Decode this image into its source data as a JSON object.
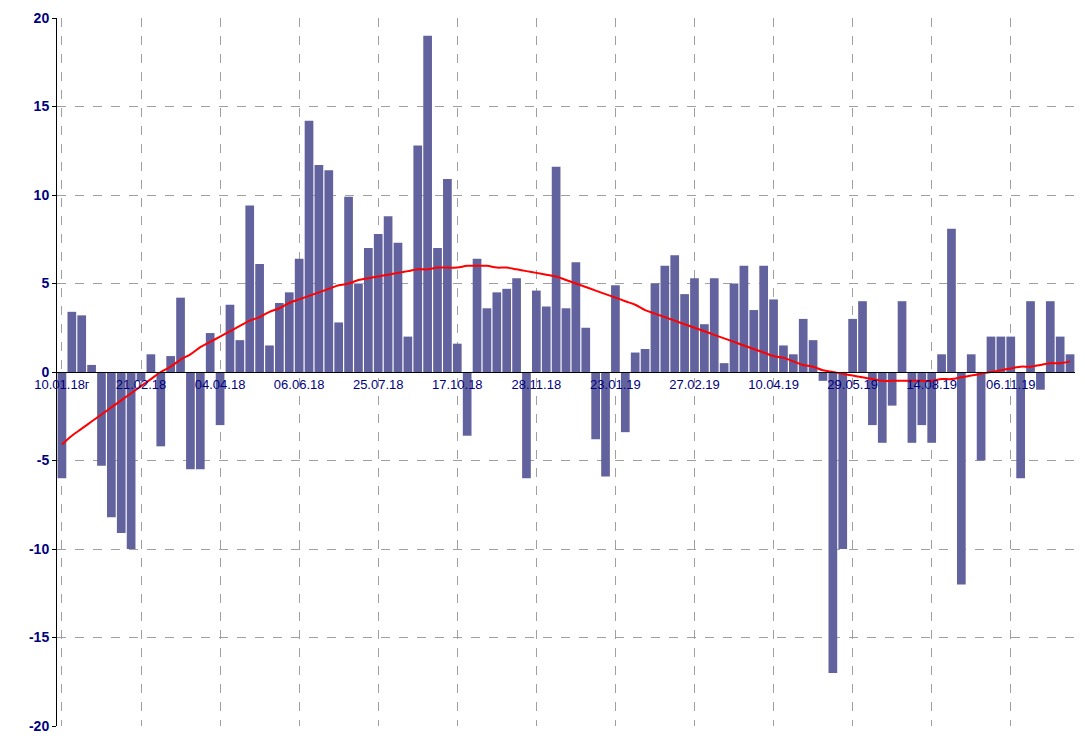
{
  "chart_data": {
    "type": "bar",
    "categories": [
      "10.01.18г",
      null,
      null,
      null,
      null,
      null,
      null,
      null,
      "21.02.18",
      null,
      null,
      null,
      null,
      null,
      null,
      null,
      "04.04.18",
      null,
      null,
      null,
      null,
      null,
      null,
      null,
      "06.06.18",
      null,
      null,
      null,
      null,
      null,
      null,
      null,
      "25.07.18",
      null,
      null,
      null,
      null,
      null,
      null,
      null,
      "17.10.18",
      null,
      null,
      null,
      null,
      null,
      null,
      null,
      "28.11.18",
      null,
      null,
      null,
      null,
      null,
      null,
      null,
      "23.01.19",
      null,
      null,
      null,
      null,
      null,
      null,
      null,
      "27.02.19",
      null,
      null,
      null,
      null,
      null,
      null,
      null,
      "10.04.19",
      null,
      null,
      null,
      null,
      null,
      null,
      null,
      "29.05.19",
      null,
      null,
      null,
      null,
      null,
      null,
      null,
      "14.08.19",
      null,
      null,
      null,
      null,
      null,
      null,
      null,
      "06.11.19",
      null,
      null,
      null,
      null,
      null,
      null
    ],
    "series": [
      {
        "type": "bar",
        "color": "#62629e",
        "values": [
          -6,
          3.4,
          3.2,
          0.4,
          -5.3,
          -8.2,
          -9.1,
          -10,
          -0.5,
          1,
          -4.2,
          0.9,
          4.2,
          -5.5,
          -5.5,
          2.2,
          -3,
          3.8,
          1.8,
          9.4,
          6.1,
          1.5,
          3.9,
          4.5,
          6.4,
          14.2,
          11.7,
          11.4,
          2.8,
          9.9,
          5,
          7,
          7.8,
          8.8,
          7.3,
          2,
          12.8,
          19,
          7,
          10.9,
          1.6,
          -3.6,
          6.4,
          3.6,
          4.5,
          4.7,
          5.3,
          -6,
          4.6,
          3.7,
          11.6,
          3.6,
          6.2,
          2.5,
          -3.8,
          -5.9,
          4.9,
          -3.4,
          1.1,
          1.3,
          5,
          6,
          6.6,
          4.4,
          5.3,
          2.7,
          5.3,
          0.5,
          5,
          6,
          3.5,
          6,
          4.1,
          1.5,
          1,
          3,
          1.8,
          -0.5,
          -17,
          -10,
          3,
          4,
          -3,
          -4,
          -1.9,
          4,
          -4,
          -3,
          -4,
          1,
          8.1,
          -12,
          1,
          -5,
          2,
          2,
          2,
          -6,
          4,
          -1,
          4,
          2,
          1
        ]
      },
      {
        "type": "line",
        "color": "#ff0000",
        "values": [
          -4.1,
          -3.6,
          -3.2,
          -2.8,
          -2.4,
          -2.0,
          -1.6,
          -1.2,
          -0.8,
          -0.4,
          0,
          0.3,
          0.7,
          1.0,
          1.4,
          1.7,
          2.0,
          2.3,
          2.6,
          2.9,
          3.1,
          3.4,
          3.6,
          3.9,
          4.1,
          4.3,
          4.5,
          4.7,
          4.9,
          5.0,
          5.2,
          5.3,
          5.4,
          5.5,
          5.6,
          5.7,
          5.8,
          5.8,
          5.9,
          5.9,
          5.9,
          6.0,
          6.0,
          6.0,
          5.9,
          5.9,
          5.8,
          5.7,
          5.6,
          5.5,
          5.4,
          5.2,
          5.0,
          4.8,
          4.6,
          4.4,
          4.2,
          4.0,
          3.8,
          3.5,
          3.3,
          3.1,
          2.9,
          2.7,
          2.5,
          2.3,
          2.1,
          1.9,
          1.7,
          1.5,
          1.3,
          1.1,
          0.9,
          0.8,
          0.6,
          0.4,
          0.3,
          0.1,
          0.0,
          -0.1,
          -0.2,
          -0.3,
          -0.4,
          -0.5,
          -0.5,
          -0.5,
          -0.5,
          -0.5,
          -0.5,
          -0.4,
          -0.4,
          -0.3,
          -0.2,
          -0.1,
          0.0,
          0.1,
          0.2,
          0.3,
          0.3,
          0.4,
          0.5,
          0.5,
          0.6
        ]
      }
    ],
    "ylim": [
      -20,
      20
    ],
    "yticks": [
      -20,
      -15,
      -10,
      -5,
      0,
      5,
      10,
      15,
      20
    ],
    "grid": true
  }
}
